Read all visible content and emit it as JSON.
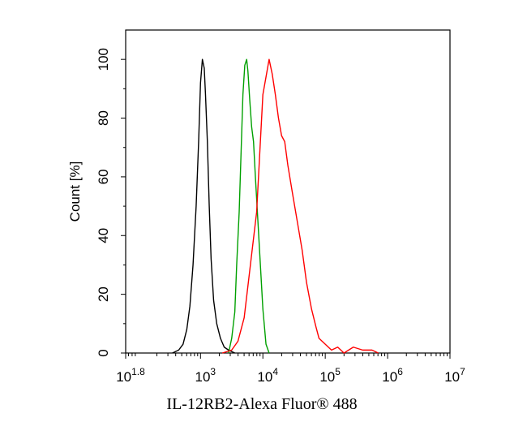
{
  "chart_data": {
    "type": "line",
    "title": "",
    "xlabel": "IL-12RB2-Alexa Fluor® 488",
    "ylabel": "Count [%]",
    "x_scale": "log",
    "xlim_log10": [
      1.8,
      7
    ],
    "ylim": [
      0,
      110
    ],
    "x_ticks": [
      {
        "base": "10",
        "exp": "1.8",
        "log10": 1.8
      },
      {
        "base": "10",
        "exp": "3",
        "log10": 3
      },
      {
        "base": "10",
        "exp": "4",
        "log10": 4
      },
      {
        "base": "10",
        "exp": "5",
        "log10": 5
      },
      {
        "base": "10",
        "exp": "6",
        "log10": 6
      },
      {
        "base": "10",
        "exp": "7",
        "log10": 7
      }
    ],
    "y_ticks": [
      "0",
      "20",
      "40",
      "60",
      "80",
      "100"
    ],
    "grid": false,
    "series": [
      {
        "color": "#000000",
        "x_log10": [
          2.55,
          2.65,
          2.72,
          2.78,
          2.83,
          2.88,
          2.93,
          2.97,
          3.0,
          3.03,
          3.06,
          3.08,
          3.11,
          3.14,
          3.17,
          3.21,
          3.26,
          3.32,
          3.38,
          3.45,
          3.55
        ],
        "y": [
          0,
          1,
          3,
          8,
          16,
          30,
          50,
          72,
          92,
          100,
          97,
          88,
          72,
          50,
          32,
          18,
          10,
          5,
          2,
          1,
          0
        ]
      },
      {
        "color": "#00a000",
        "x_log10": [
          3.45,
          3.5,
          3.55,
          3.58,
          3.62,
          3.65,
          3.68,
          3.71,
          3.74,
          3.76,
          3.79,
          3.82,
          3.85,
          3.88,
          3.92,
          3.96,
          4.0,
          4.05,
          4.1
        ],
        "y": [
          0,
          5,
          14,
          30,
          48,
          68,
          88,
          98,
          100,
          96,
          86,
          77,
          72,
          60,
          45,
          30,
          15,
          3,
          0
        ]
      },
      {
        "color": "#ff0000",
        "x_log10": [
          3.35,
          3.5,
          3.6,
          3.7,
          3.8,
          3.9,
          3.95,
          4.0,
          4.05,
          4.1,
          4.15,
          4.2,
          4.25,
          4.3,
          4.35,
          4.4,
          4.47,
          4.55,
          4.63,
          4.7,
          4.78,
          4.85,
          4.9,
          5.0,
          5.1,
          5.2,
          5.3,
          5.45,
          5.6,
          5.75,
          5.85
        ],
        "y": [
          0,
          1,
          4,
          12,
          30,
          48,
          68,
          88,
          94,
          100,
          95,
          88,
          80,
          74,
          72,
          64,
          55,
          45,
          35,
          24,
          15,
          9,
          5,
          3,
          1,
          2,
          0,
          2,
          1,
          1,
          0
        ]
      }
    ]
  }
}
